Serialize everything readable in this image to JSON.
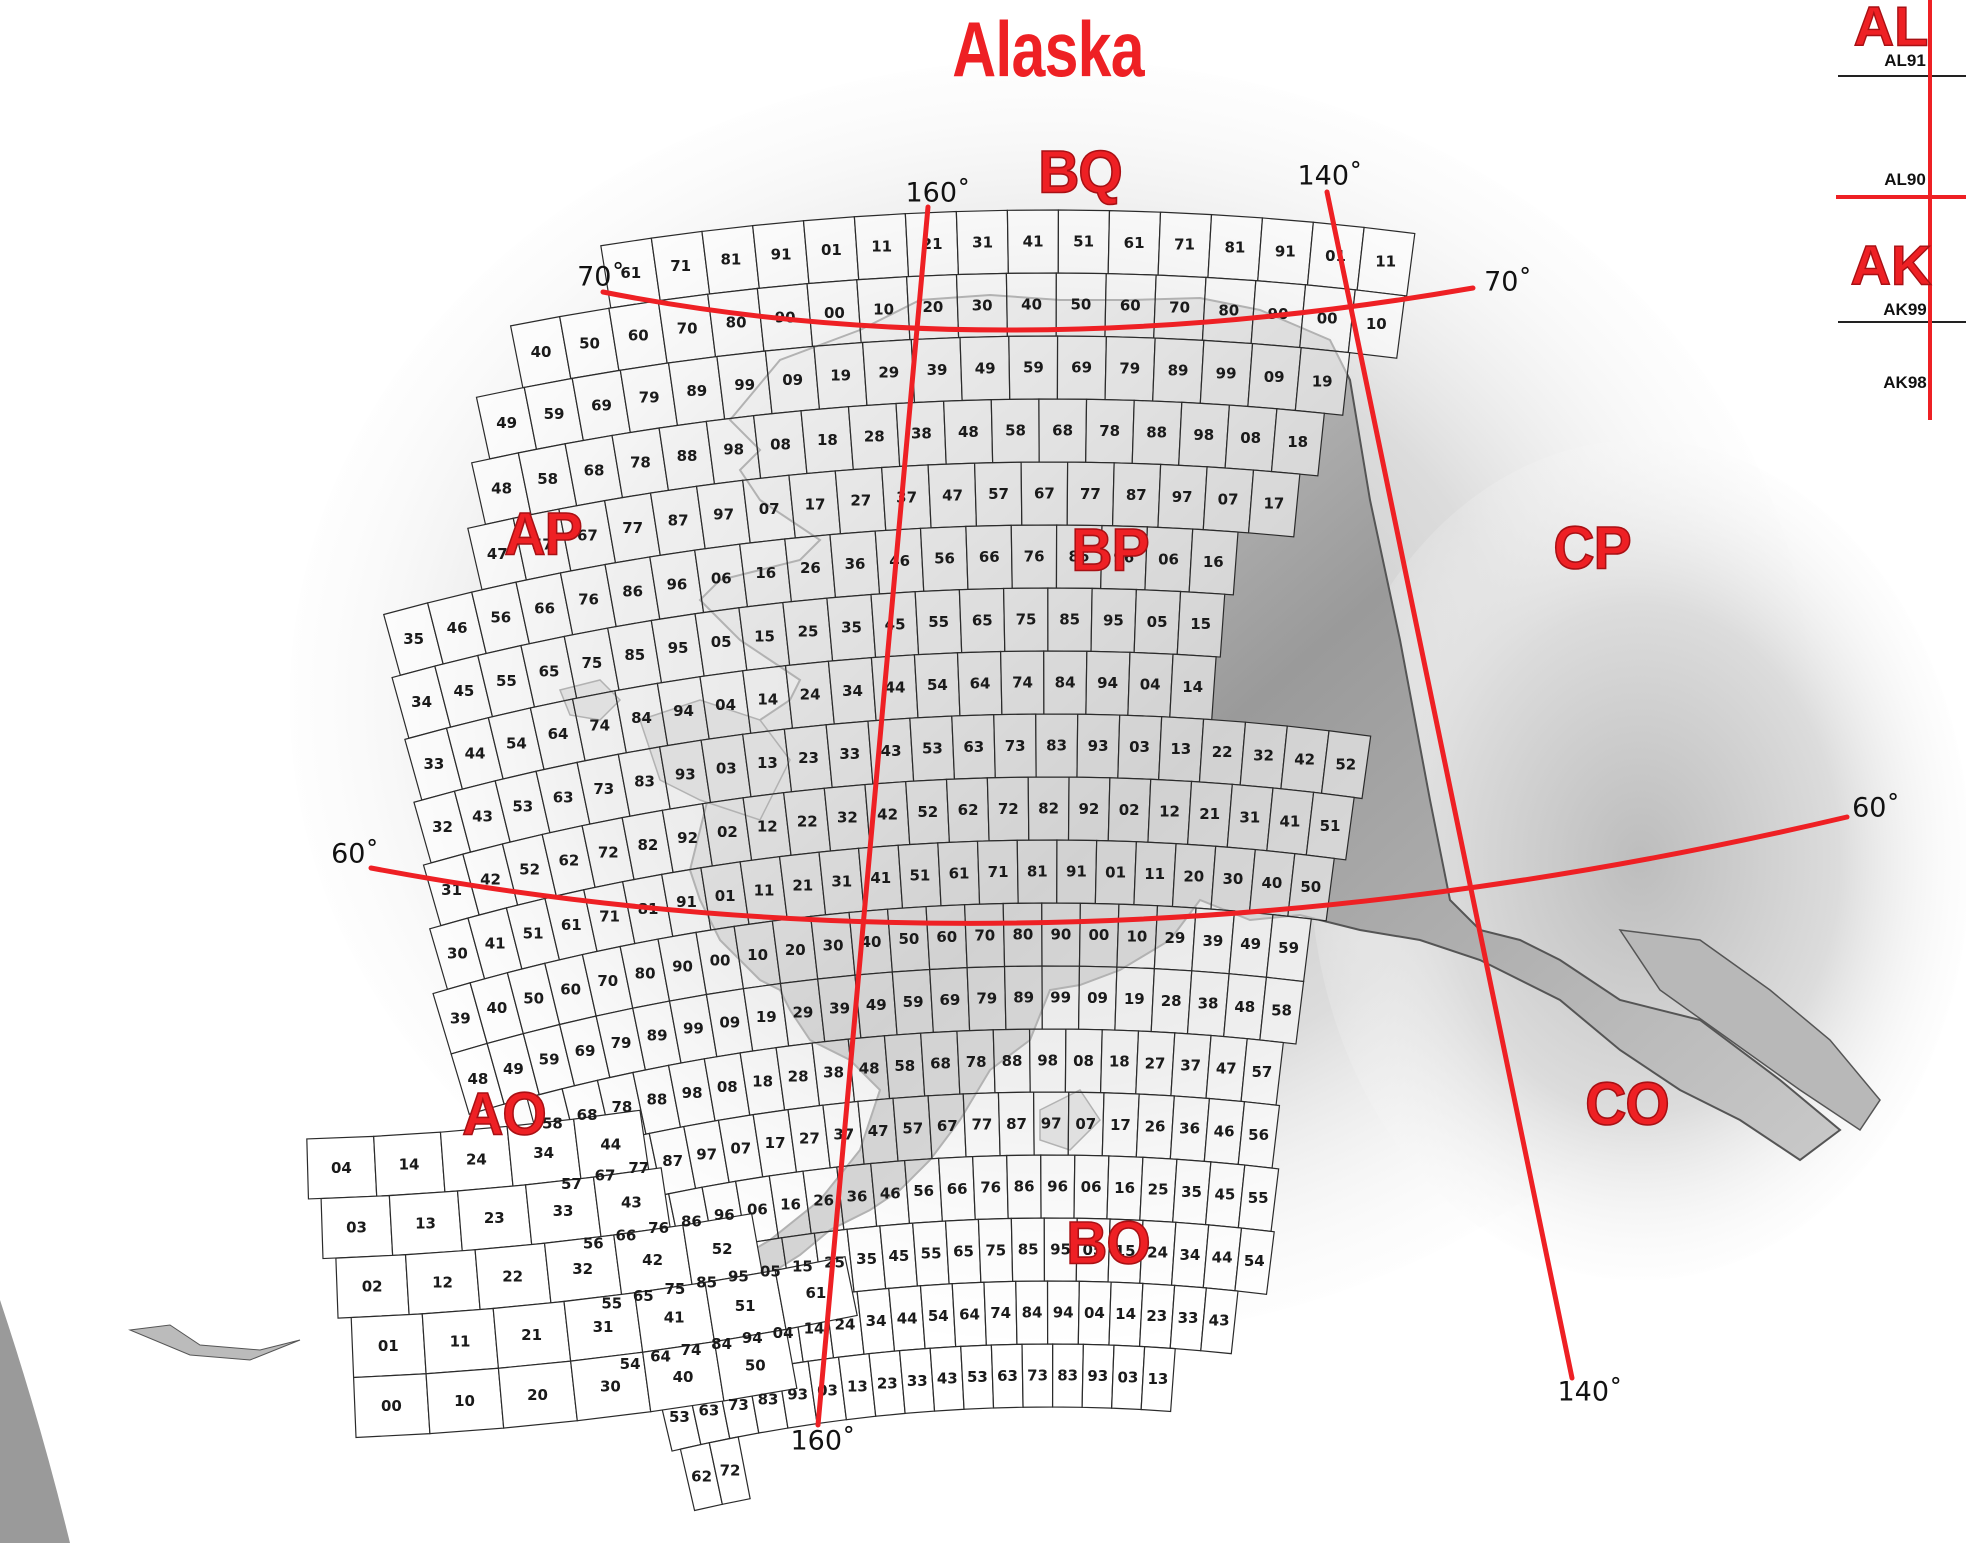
{
  "title": "Alaska",
  "zones": {
    "BQ": "BQ",
    "AP": "AP",
    "BP": "BP",
    "CP": "CP",
    "AO": "AO",
    "BO": "BO",
    "CO": "CO"
  },
  "degree_labels": {
    "lon160_top": "160˚",
    "lon140_top": "140˚",
    "lat70_left": "70˚",
    "lat70_right": "70˚",
    "lat60_left": "60˚",
    "lat60_right": "60˚",
    "lon140_bottom": "140˚",
    "lon160_bottom": "160˚"
  },
  "side_panel": {
    "zone_top": "AL",
    "zone_bottom": "AK",
    "labels": [
      "AL91",
      "AL90",
      "AK99",
      "AK98"
    ]
  },
  "colors": {
    "accent": "#ee2024",
    "grid": "#2b2b2b",
    "land": "#9c9c9c"
  },
  "grid_cells": [
    [
      "61",
      "71",
      "81",
      "91",
      "01",
      "11",
      "21",
      "31",
      "41",
      "51",
      "61",
      "71",
      "81",
      "91",
      "01",
      "11"
    ],
    [
      "40",
      "50",
      "60",
      "70",
      "80",
      "90",
      "00",
      "10",
      "20",
      "30",
      "40",
      "50",
      "60",
      "70",
      "80",
      "90",
      "00",
      "10"
    ],
    [
      "49",
      "59",
      "69",
      "79",
      "89",
      "99",
      "09",
      "19",
      "29",
      "39",
      "49",
      "59",
      "69",
      "79",
      "89",
      "99",
      "09",
      "19"
    ],
    [
      "48",
      "58",
      "68",
      "78",
      "88",
      "98",
      "08",
      "18",
      "28",
      "38",
      "48",
      "58",
      "68",
      "78",
      "88",
      "98",
      "08",
      "18"
    ],
    [
      "47",
      "57",
      "67",
      "77",
      "87",
      "97",
      "07",
      "17",
      "27",
      "37",
      "47",
      "57",
      "67",
      "77",
      "87",
      "97",
      "07",
      "17"
    ],
    [
      "35",
      "46",
      "56",
      "66",
      "76",
      "86",
      "96",
      "06",
      "16",
      "26",
      "36",
      "46",
      "56",
      "66",
      "76",
      "86",
      "96",
      "06",
      "16"
    ],
    [
      "34",
      "45",
      "55",
      "65",
      "75",
      "85",
      "95",
      "05",
      "15",
      "25",
      "35",
      "45",
      "55",
      "65",
      "75",
      "85",
      "95",
      "05",
      "15"
    ],
    [
      "33",
      "44",
      "54",
      "64",
      "74",
      "84",
      "94",
      "04",
      "14",
      "24",
      "34",
      "44",
      "54",
      "64",
      "74",
      "84",
      "94",
      "04",
      "14"
    ],
    [
      "32",
      "43",
      "53",
      "63",
      "73",
      "83",
      "93",
      "03",
      "13",
      "23",
      "33",
      "43",
      "53",
      "63",
      "73",
      "83",
      "93",
      "03",
      "13",
      "22",
      "32",
      "42",
      "52"
    ],
    [
      "31",
      "42",
      "52",
      "62",
      "72",
      "82",
      "92",
      "02",
      "12",
      "22",
      "32",
      "42",
      "52",
      "62",
      "72",
      "82",
      "92",
      "02",
      "12",
      "21",
      "31",
      "41",
      "51"
    ],
    [
      "30",
      "41",
      "51",
      "61",
      "71",
      "81",
      "91",
      "01",
      "11",
      "21",
      "31",
      "41",
      "51",
      "61",
      "71",
      "81",
      "91",
      "01",
      "11",
      "20",
      "30",
      "40",
      "50"
    ],
    [
      "39",
      "40",
      "50",
      "60",
      "70",
      "80",
      "90",
      "00",
      "10",
      "20",
      "30",
      "40",
      "50",
      "60",
      "70",
      "80",
      "90",
      "00",
      "10",
      "29",
      "39",
      "49",
      "59"
    ],
    [
      "48",
      "49",
      "59",
      "69",
      "79",
      "89",
      "99",
      "09",
      "19",
      "29",
      "39",
      "49",
      "59",
      "69",
      "79",
      "89",
      "99",
      "09",
      "19",
      "28",
      "38",
      "48",
      "58"
    ],
    [
      "58",
      "68",
      "78",
      "88",
      "98",
      "08",
      "18",
      "28",
      "38",
      "48",
      "58",
      "68",
      "78",
      "88",
      "98",
      "08",
      "18",
      "27",
      "37",
      "47",
      "57"
    ],
    [
      "57",
      "67",
      "77",
      "87",
      "97",
      "07",
      "17",
      "27",
      "37",
      "47",
      "57",
      "67",
      "77",
      "87",
      "97",
      "07",
      "17",
      "26",
      "36",
      "46",
      "56"
    ],
    [
      "56",
      "66",
      "76",
      "86",
      "96",
      "06",
      "16",
      "26",
      "36",
      "46",
      "56",
      "66",
      "76",
      "86",
      "96",
      "06",
      "16",
      "25",
      "35",
      "45",
      "55"
    ],
    [
      "55",
      "65",
      "75",
      "85",
      "95",
      "05",
      "15",
      "25",
      "35",
      "45",
      "55",
      "65",
      "75",
      "85",
      "95",
      "05",
      "15",
      "24",
      "34",
      "44",
      "54"
    ],
    [
      "54",
      "64",
      "74",
      "84",
      "94",
      "04",
      "14",
      "24",
      "34",
      "44",
      "54",
      "64",
      "74",
      "84",
      "94",
      "04",
      "14",
      "23",
      "33",
      "43"
    ],
    [
      "53",
      "63",
      "73",
      "83",
      "93",
      "03",
      "13",
      "23",
      "33",
      "43",
      "53",
      "63",
      "73",
      "83",
      "93",
      "03",
      "13"
    ],
    [
      "62",
      "72"
    ]
  ],
  "aleutian_cells": [
    [
      "04",
      "14",
      "24",
      "34",
      "44"
    ],
    [
      "03",
      "13",
      "23",
      "33",
      "43"
    ],
    [
      "02",
      "12",
      "22",
      "32",
      "42",
      "52"
    ],
    [
      "01",
      "11",
      "21",
      "31",
      "41",
      "51",
      "61"
    ],
    [
      "00",
      "10",
      "20",
      "30",
      "40",
      "50"
    ]
  ]
}
